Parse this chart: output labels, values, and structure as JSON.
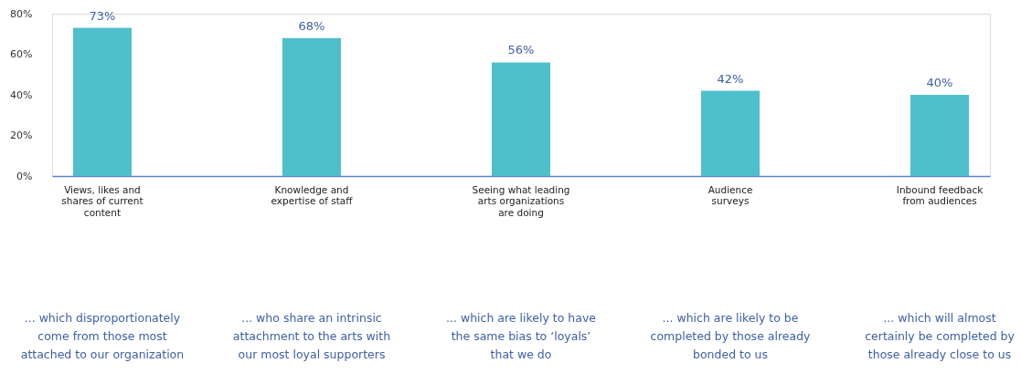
{
  "chart_data": {
    "type": "bar",
    "categories": [
      "Views, likes and\nshares of current\ncontent",
      "Knowledge and\nexpertise of staff",
      "Seeing what leading\narts organizations\nare doing",
      "Audience\nsurveys",
      "Inbound feedback\nfrom audiences"
    ],
    "values": [
      73,
      68,
      56,
      42,
      40
    ],
    "value_labels": [
      "73%",
      "68%",
      "56%",
      "42%",
      "40%"
    ],
    "color": "#50bfcc",
    "ylim": [
      0,
      80
    ],
    "yticks": [
      {
        "value": 0,
        "label": "0%"
      },
      {
        "value": 20,
        "label": "20%"
      },
      {
        "value": 40,
        "label": "40%"
      },
      {
        "value": 60,
        "label": "60%"
      },
      {
        "value": 80,
        "label": "80%"
      }
    ],
    "grid": false,
    "annotations": [
      "... which disproportionately\ncome from those most\nattached to our organization",
      "... who share an intrinsic\nattachment to the arts with\nour most loyal supporters",
      "... which are likely to have\nthe same bias to ‘loyals’\nthat we do",
      "... which are likely to be\ncompleted by those already\nbonded to us",
      "... which will almost\ncertainly be completed by\nthose already close to us"
    ]
  }
}
